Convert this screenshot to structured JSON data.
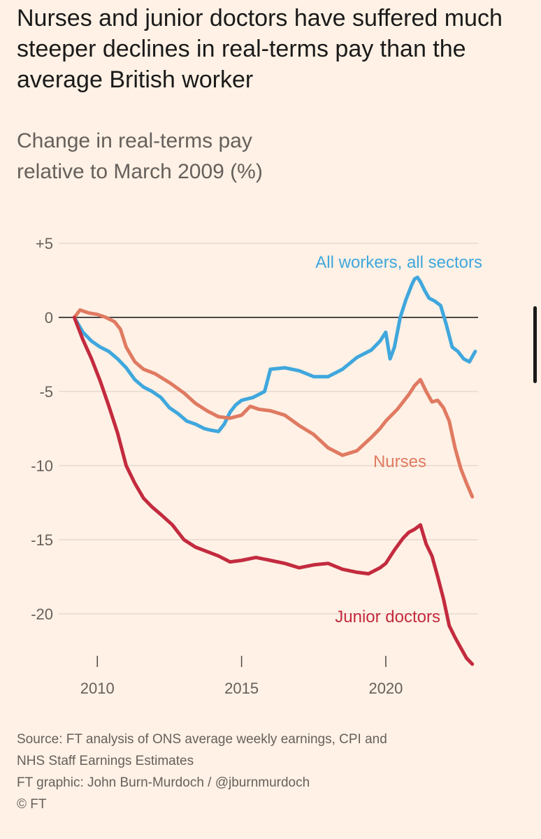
{
  "title": "Nurses and junior doctors have suffered much steeper declines in real-terms pay than the average British worker",
  "subtitle_line1": "Change in real-terms pay",
  "subtitle_line2": "relative to March 2009 (%)",
  "footer": {
    "source_line1": "Source: FT analysis of ONS average weekly earnings, CPI and",
    "source_line2": "NHS Staff Earnings Estimates",
    "credit": "FT graphic: John Burn-Murdoch / @jburnmurdoch",
    "copyright": "© FT"
  },
  "colors": {
    "background": "#fff1e5",
    "all_workers": "#3fa7dd",
    "nurses": "#e07a62",
    "junior_doctors": "#c32b3f",
    "zero_line": "#4d4845",
    "grid": "#e6d9ce",
    "text_muted": "#66605c"
  },
  "chart_data": {
    "type": "line",
    "title": "",
    "xlabel": "",
    "ylabel": "",
    "xlim": [
      2009,
      2023.2
    ],
    "ylim": [
      -23.5,
      5
    ],
    "y_ticks": [
      5,
      0,
      -5,
      -10,
      -15,
      -20
    ],
    "y_tick_labels": [
      "+5",
      "0",
      "-5",
      "-10",
      "-15",
      "-20"
    ],
    "x_ticks": [
      2010,
      2015,
      2020
    ],
    "x_tick_labels": [
      "2010",
      "2015",
      "2020"
    ],
    "grid": true,
    "series": [
      {
        "name": "All workers, all sectors",
        "color_key": "all_workers",
        "x": [
          2009.2,
          2009.5,
          2009.8,
          2010.1,
          2010.4,
          2010.7,
          2011.0,
          2011.3,
          2011.6,
          2011.9,
          2012.2,
          2012.5,
          2012.8,
          2013.1,
          2013.4,
          2013.7,
          2013.9,
          2014.2,
          2014.4,
          2014.6,
          2014.8,
          2015.0,
          2015.4,
          2015.8,
          2016.0,
          2016.5,
          2017.0,
          2017.5,
          2018.0,
          2018.5,
          2019.0,
          2019.5,
          2019.8,
          2020.0,
          2020.15,
          2020.3,
          2020.5,
          2020.7,
          2020.9,
          2021.0,
          2021.1,
          2021.2,
          2021.35,
          2021.5,
          2021.7,
          2021.9,
          2022.1,
          2022.3,
          2022.5,
          2022.7,
          2022.9,
          2023.1
        ],
        "values": [
          0,
          -1,
          -1.6,
          -2,
          -2.3,
          -2.8,
          -3.4,
          -4.2,
          -4.7,
          -5,
          -5.4,
          -6.1,
          -6.5,
          -7,
          -7.2,
          -7.5,
          -7.6,
          -7.7,
          -7.2,
          -6.4,
          -5.9,
          -5.6,
          -5.4,
          -5.0,
          -3.5,
          -3.4,
          -3.6,
          -4.0,
          -4.0,
          -3.5,
          -2.7,
          -2.2,
          -1.6,
          -1.0,
          -2.8,
          -2.0,
          0.0,
          1.2,
          2.2,
          2.6,
          2.7,
          2.4,
          1.8,
          1.3,
          1.1,
          0.8,
          -0.5,
          -2.0,
          -2.3,
          -2.8,
          -3.0,
          -2.3
        ]
      },
      {
        "name": "Nurses",
        "color_key": "nurses",
        "x": [
          2009.2,
          2009.4,
          2009.7,
          2010.0,
          2010.3,
          2010.6,
          2010.8,
          2011.0,
          2011.3,
          2011.6,
          2012.0,
          2012.5,
          2013.0,
          2013.4,
          2013.8,
          2014.2,
          2014.6,
          2015.0,
          2015.3,
          2015.6,
          2016.0,
          2016.5,
          2017.0,
          2017.5,
          2018.0,
          2018.5,
          2019.0,
          2019.5,
          2019.8,
          2020.0,
          2020.4,
          2020.8,
          2021.0,
          2021.2,
          2021.4,
          2021.6,
          2021.8,
          2022.0,
          2022.2,
          2022.4,
          2022.6,
          2022.8,
          2023.0
        ],
        "values": [
          0,
          0.5,
          0.3,
          0.2,
          0,
          -0.3,
          -0.8,
          -2.0,
          -3.0,
          -3.5,
          -3.8,
          -4.4,
          -5.1,
          -5.8,
          -6.3,
          -6.7,
          -6.8,
          -6.6,
          -6.0,
          -6.2,
          -6.3,
          -6.6,
          -7.3,
          -7.9,
          -8.8,
          -9.3,
          -9.0,
          -8.1,
          -7.5,
          -7.0,
          -6.2,
          -5.2,
          -4.6,
          -4.2,
          -5.0,
          -5.7,
          -5.6,
          -6.1,
          -7.0,
          -8.8,
          -10.2,
          -11.2,
          -12.1
        ]
      },
      {
        "name": "Junior doctors",
        "color_key": "junior_doctors",
        "x": [
          2009.2,
          2009.5,
          2009.8,
          2010.1,
          2010.4,
          2010.7,
          2011.0,
          2011.3,
          2011.6,
          2011.9,
          2012.2,
          2012.6,
          2013.0,
          2013.4,
          2013.8,
          2014.2,
          2014.6,
          2015.0,
          2015.5,
          2016.0,
          2016.5,
          2017.0,
          2017.5,
          2018.0,
          2018.5,
          2019.0,
          2019.4,
          2019.8,
          2020.0,
          2020.3,
          2020.6,
          2020.8,
          2021.0,
          2021.2,
          2021.4,
          2021.6,
          2021.8,
          2022.0,
          2022.2,
          2022.4,
          2022.6,
          2022.8,
          2023.0
        ],
        "values": [
          0,
          -1.5,
          -2.8,
          -4.3,
          -6.0,
          -7.8,
          -10.0,
          -11.2,
          -12.2,
          -12.8,
          -13.3,
          -14.0,
          -15.0,
          -15.5,
          -15.8,
          -16.1,
          -16.5,
          -16.4,
          -16.2,
          -16.4,
          -16.6,
          -16.9,
          -16.7,
          -16.6,
          -17.0,
          -17.2,
          -17.3,
          -16.9,
          -16.6,
          -15.7,
          -14.9,
          -14.5,
          -14.3,
          -14.0,
          -15.3,
          -16.1,
          -17.5,
          -19.0,
          -20.8,
          -21.6,
          -22.3,
          -23.0,
          -23.4
        ]
      }
    ]
  }
}
